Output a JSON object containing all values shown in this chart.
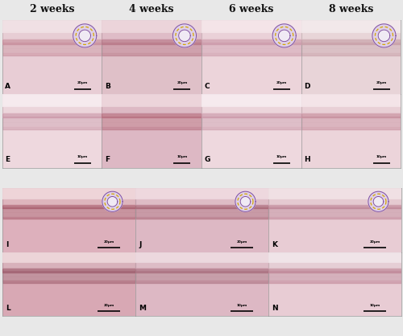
{
  "background_color": "#e8e8e8",
  "panel_border": "#999999",
  "col_headers": [
    "2 weeks",
    "4 weeks",
    "6 weeks",
    "8 weeks"
  ],
  "header_fontsize": 9,
  "header_color": "#111111",
  "header_font": "DejaVu Serif",
  "label_fontsize": 7,
  "label_color": "#000000",
  "scale_200": "20μm",
  "scale_400": "10μm",
  "white_gap_color": "#ffffff",
  "panels": {
    "A": {
      "bg": "#e8cdd5",
      "stripe1": "#c9909e",
      "stripe2": "#ddb8c2",
      "light": "#f0e0e4",
      "has_inset": true,
      "scale": "20μm"
    },
    "B": {
      "bg": "#dfc0c8",
      "stripe1": "#b87888",
      "stripe2": "#d0a0b0",
      "light": "#ecd4da",
      "has_inset": true,
      "scale": "20μm"
    },
    "C": {
      "bg": "#ecd4da",
      "stripe1": "#cc9aaa",
      "stripe2": "#e0bcc6",
      "light": "#f4e4e8",
      "has_inset": true,
      "scale": "20μm"
    },
    "D": {
      "bg": "#e8d4d8",
      "stripe1": "#c8a0a8",
      "stripe2": "#dcc0c4",
      "light": "#f2e8ea",
      "has_inset": true,
      "scale": "20μm"
    },
    "E": {
      "bg": "#eed8de",
      "stripe1": "#cc9aaa",
      "stripe2": "#e0bcc6",
      "light": "#f6eaee",
      "has_inset": false,
      "scale": "10μm"
    },
    "F": {
      "bg": "#ddb8c4",
      "stripe1": "#b87080",
      "stripe2": "#cc9aaa",
      "light": "#ecd4da",
      "has_inset": false,
      "scale": "10μm"
    },
    "G": {
      "bg": "#eed8de",
      "stripe1": "#cc9aaa",
      "stripe2": "#e0bcc6",
      "light": "#f6eaee",
      "has_inset": false,
      "scale": "10μm"
    },
    "H": {
      "bg": "#ecd4da",
      "stripe1": "#c8909e",
      "stripe2": "#ddb8c2",
      "light": "#f4e4e8",
      "has_inset": false,
      "scale": "10μm"
    },
    "I": {
      "bg": "#ddb0bc",
      "stripe1": "#aa6070",
      "stripe2": "#cc909e",
      "light": "#eed4d8",
      "has_inset": true,
      "scale": "20μm"
    },
    "J": {
      "bg": "#ddb8c4",
      "stripe1": "#aa6878",
      "stripe2": "#cc9aaa",
      "light": "#eed8de",
      "has_inset": true,
      "scale": "20μm"
    },
    "K": {
      "bg": "#e8ccd4",
      "stripe1": "#c08898",
      "stripe2": "#d8b0bc",
      "light": "#f0e0e4",
      "has_inset": true,
      "scale": "20μm"
    },
    "L": {
      "bg": "#d8a8b4",
      "stripe1": "#a06070",
      "stripe2": "#c08898",
      "light": "#ecd4d8",
      "has_inset": false,
      "scale": "20μm"
    },
    "M": {
      "bg": "#ddb8c4",
      "stripe1": "#aa7080",
      "stripe2": "#cc9aaa",
      "light": "#ecd8de",
      "has_inset": false,
      "scale": "10μm"
    },
    "N": {
      "bg": "#e8ccd4",
      "stripe1": "#c08898",
      "stripe2": "#d8b4be",
      "light": "#f0e4e8",
      "has_inset": false,
      "scale": "10μm"
    }
  },
  "inset_ring_color": "#8050a0",
  "inset_dash_color": "#d4a800",
  "inset_bg": "#ddd0e0",
  "top_rows": [
    "A",
    "B",
    "C",
    "D"
  ],
  "mid_rows": [
    "E",
    "F",
    "G",
    "H"
  ],
  "bot_rows1": [
    "I",
    "J",
    "K"
  ],
  "bot_rows2": [
    "L",
    "M",
    "N"
  ]
}
